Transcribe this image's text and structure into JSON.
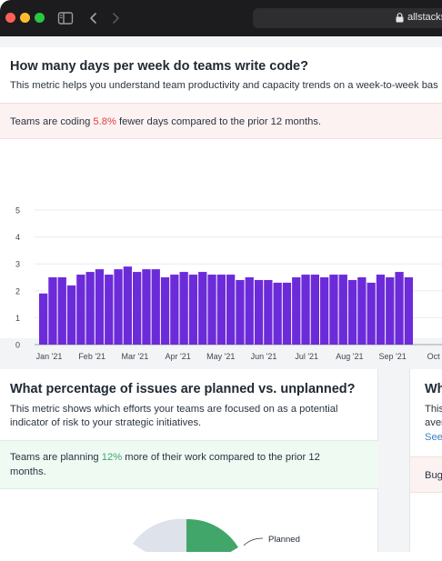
{
  "browser": {
    "url": "allstacks"
  },
  "metric_days": {
    "title": "How many days per week do teams write code?",
    "description": "This metric helps you understand team productivity and capacity trends on a week-to-week bas",
    "insight_prefix": "Teams are coding ",
    "insight_pct": "5.8%",
    "insight_suffix": " fewer days compared to the prior 12 months."
  },
  "chart_data": {
    "type": "bar",
    "y_ticks": [
      "0",
      "1",
      "2",
      "3",
      "4",
      "5"
    ],
    "ylim": [
      0,
      5
    ],
    "x_tick_labels": [
      "Jan '21",
      "Feb '21",
      "Mar '21",
      "Apr '21",
      "May '21",
      "Jun '21",
      "Jul '21",
      "Aug '21",
      "Sep '21",
      "Oct '"
    ],
    "values": [
      1.9,
      2.5,
      2.5,
      2.2,
      2.6,
      2.7,
      2.8,
      2.6,
      2.8,
      2.9,
      2.7,
      2.8,
      2.8,
      2.5,
      2.6,
      2.7,
      2.6,
      2.7,
      2.6,
      2.6,
      2.6,
      2.4,
      2.5,
      2.4,
      2.4,
      2.3,
      2.3,
      2.5,
      2.6,
      2.6,
      2.5,
      2.6,
      2.6,
      2.4,
      2.5,
      2.3,
      2.6,
      2.5,
      2.7,
      2.5
    ],
    "bar_color": "#6c2bd9",
    "grid": true
  },
  "metric_planned": {
    "title": "What percentage of issues are planned vs. unplanned?",
    "description_line1": "This metric shows which efforts your teams are focused on as a potential",
    "description_line2": "indicator of risk to your strategic initiatives.",
    "insight_prefix": "Teams are planning ",
    "insight_pct": "12%",
    "insight_suffix_line1": " more of their work compared to the prior 12",
    "insight_line2": "months.",
    "legend_planned": "Planned",
    "pie_colors": {
      "planned": "#41a66a",
      "unplanned": "#dde2eb"
    }
  },
  "metric_third": {
    "title_fragment": "Wh",
    "desc_line1": "This",
    "desc_line2": "aver",
    "link_fragment": "See",
    "insight_fragment": "Bug"
  }
}
